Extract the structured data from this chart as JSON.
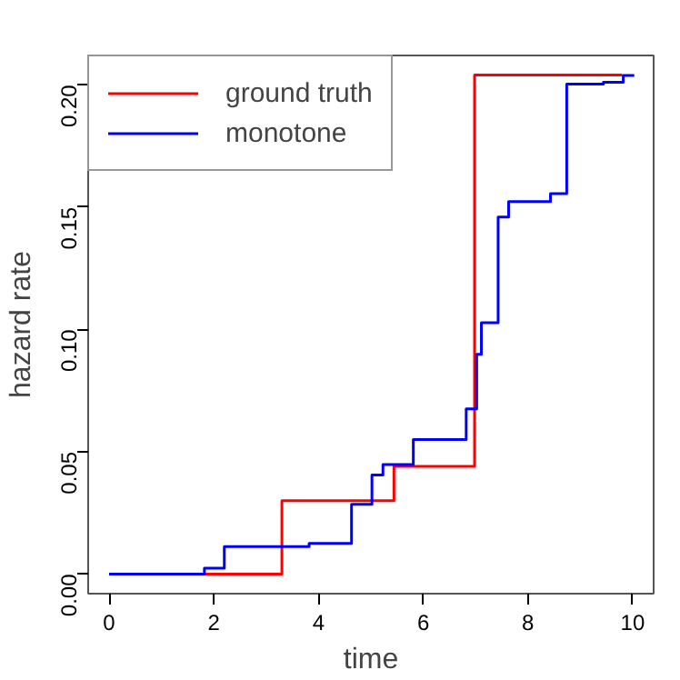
{
  "chart_data": {
    "type": "step",
    "xlabel": "time",
    "ylabel": "hazard rate",
    "xlim": [
      -0.4,
      10.4
    ],
    "ylim": [
      -0.008,
      0.212
    ],
    "xticks": [
      0,
      2,
      4,
      6,
      8,
      10
    ],
    "yticks": [
      {
        "value": 0,
        "label": "0.00"
      },
      {
        "value": 0.05,
        "label": "0.05"
      },
      {
        "value": 0.1,
        "label": "0.10"
      },
      {
        "value": 0.15,
        "label": "0.15"
      },
      {
        "value": 0.2,
        "label": "0.20"
      }
    ],
    "grid": false,
    "legend": "top left",
    "line_style": "solid",
    "marker": "none",
    "series": [
      {
        "name": "ground truth",
        "color": "#ff0000",
        "x": [
          0,
          3.3,
          5.44,
          6.98,
          9.8
        ],
        "values": [
          0,
          0.03,
          0.044,
          0.204,
          0.204
        ]
      },
      {
        "name": "monotone",
        "color": "#0000ff",
        "x": [
          0,
          1.82,
          2.2,
          3.82,
          4.63,
          5.02,
          5.23,
          5.81,
          6.82,
          7.02,
          7.11,
          7.43,
          7.63,
          8.43,
          8.74,
          9.44,
          9.82,
          10.03
        ],
        "values": [
          0,
          0.0024,
          0.0112,
          0.0125,
          0.0285,
          0.0405,
          0.0448,
          0.055,
          0.0675,
          0.0898,
          0.1027,
          0.1459,
          0.1523,
          0.1555,
          0.2003,
          0.201,
          0.2038,
          0.2038
        ]
      }
    ]
  }
}
